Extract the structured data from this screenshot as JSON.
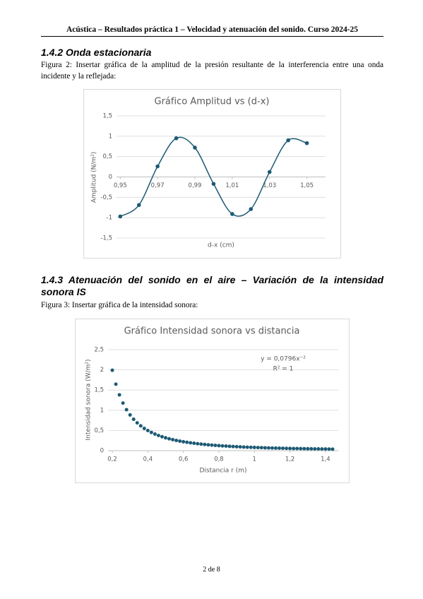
{
  "header": "Acústica – Resultados práctica 1 – Velocidad y atenuación del sonido. Curso 2024-25",
  "sections": [
    {
      "heading": "1.4.2 Onda estacionaria",
      "caption": "Figura 2: Insertar gráfica de la amplitud de la presión resultante de la interferencia entre una onda incidente y la reflejada:"
    },
    {
      "heading": "1.4.3 Atenuación del sonido en el aire – Variación de la intensidad sonora IS",
      "caption": "Figura 3: Insertar gráfica de la intensidad sonora:"
    }
  ],
  "chart_data": [
    {
      "type": "scatter",
      "title": "Gráfico Amplitud vs (d-x)",
      "x_label": "d-x (cm)",
      "y_label": "Amplitud (N/m²)",
      "x": [
        0.95,
        0.96,
        0.97,
        0.98,
        0.99,
        1.0,
        1.01,
        1.02,
        1.03,
        1.04,
        1.05
      ],
      "values": [
        -0.97,
        -0.69,
        0.26,
        0.95,
        0.72,
        -0.17,
        -0.91,
        -0.79,
        0.12,
        0.9,
        0.83
      ],
      "color": "#1d5a74",
      "smooth_line": true,
      "grid": true,
      "xlim": [
        0.948,
        1.06
      ],
      "ylim": [
        -1.5,
        1.5
      ],
      "xticks": [
        {
          "value": 0.95,
          "label": "0,95"
        },
        {
          "value": 0.97,
          "label": "0,97"
        },
        {
          "value": 0.99,
          "label": "0,99"
        },
        {
          "value": 1.01,
          "label": "1,01"
        },
        {
          "value": 1.03,
          "label": "1,03"
        },
        {
          "value": 1.05,
          "label": "1,05"
        }
      ],
      "yticks": [
        {
          "value": -1.5,
          "label": "-1,5"
        },
        -1,
        {
          "value": -0.5,
          "label": "-0,5"
        },
        0,
        {
          "value": 0.5,
          "label": "0,5"
        },
        1,
        {
          "value": 1.5,
          "label": "1,5"
        }
      ],
      "annotations": []
    },
    {
      "type": "scatter",
      "title": "Gráfico Intensidad sonora vs distancia",
      "x_label": "Distancia r (m)",
      "y_label": "Intensidad sonora (W/m²)",
      "x": [
        0.2,
        0.22,
        0.24,
        0.26,
        0.28,
        0.3,
        0.32,
        0.34,
        0.36,
        0.38,
        0.4,
        0.42,
        0.44,
        0.46,
        0.48,
        0.5,
        0.52,
        0.54,
        0.56,
        0.58,
        0.6,
        0.62,
        0.64,
        0.66,
        0.68,
        0.7,
        0.72,
        0.74,
        0.76,
        0.78,
        0.8,
        0.82,
        0.84,
        0.86,
        0.88,
        0.9,
        0.92,
        0.94,
        0.96,
        0.98,
        1.0,
        1.02,
        1.04,
        1.06,
        1.08,
        1.1,
        1.12,
        1.14,
        1.16,
        1.18,
        1.2,
        1.22,
        1.24,
        1.26,
        1.28,
        1.3,
        1.32,
        1.34,
        1.36,
        1.38,
        1.4,
        1.42,
        1.44
      ],
      "values": [
        1.99,
        1.645,
        1.382,
        1.178,
        1.015,
        0.884,
        0.777,
        0.689,
        0.614,
        0.551,
        0.498,
        0.451,
        0.411,
        0.376,
        0.345,
        0.318,
        0.294,
        0.273,
        0.254,
        0.237,
        0.221,
        0.207,
        0.194,
        0.183,
        0.172,
        0.162,
        0.154,
        0.145,
        0.138,
        0.131,
        0.124,
        0.118,
        0.113,
        0.108,
        0.103,
        0.098,
        0.094,
        0.09,
        0.086,
        0.083,
        0.08,
        0.077,
        0.074,
        0.071,
        0.068,
        0.066,
        0.063,
        0.061,
        0.059,
        0.057,
        0.055,
        0.053,
        0.052,
        0.05,
        0.049,
        0.047,
        0.046,
        0.044,
        0.043,
        0.042,
        0.041,
        0.039,
        0.038
      ],
      "color": "#1d5a74",
      "smooth_line": false,
      "grid": true,
      "xlim": [
        0.176,
        1.472
      ],
      "ylim": [
        0,
        2.5
      ],
      "xticks": [
        {
          "value": 0.2,
          "label": "0,2"
        },
        {
          "value": 0.4,
          "label": "0,4"
        },
        {
          "value": 0.6,
          "label": "0,6"
        },
        {
          "value": 0.8,
          "label": "0,8"
        },
        1,
        {
          "value": 1.2,
          "label": "1,2"
        },
        {
          "value": 1.4,
          "label": "1,4"
        }
      ],
      "yticks": [
        0,
        {
          "value": 0.5,
          "label": "0,5"
        },
        1,
        {
          "value": 1.5,
          "label": "1,5"
        },
        2,
        {
          "value": 2.5,
          "label": "2,5"
        }
      ],
      "annotations": [
        "y = 0,0796x⁻²",
        "R² = 1"
      ]
    }
  ],
  "footer": "2 de 8"
}
